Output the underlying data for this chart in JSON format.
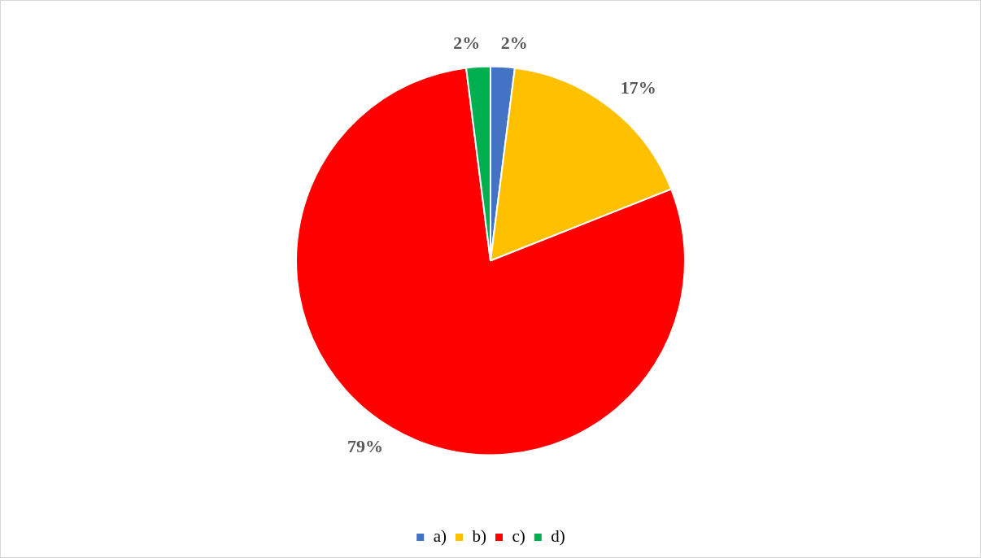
{
  "chart_data": {
    "type": "pie",
    "categories": [
      "a)",
      "b)",
      "c)",
      "d)"
    ],
    "values": [
      2,
      17,
      79,
      2
    ],
    "colors": [
      "#4472c4",
      "#ffc000",
      "#ff0000",
      "#00b050"
    ],
    "value_labels": [
      "2%",
      "17%",
      "79%",
      "2%"
    ],
    "legend": "bottom"
  }
}
